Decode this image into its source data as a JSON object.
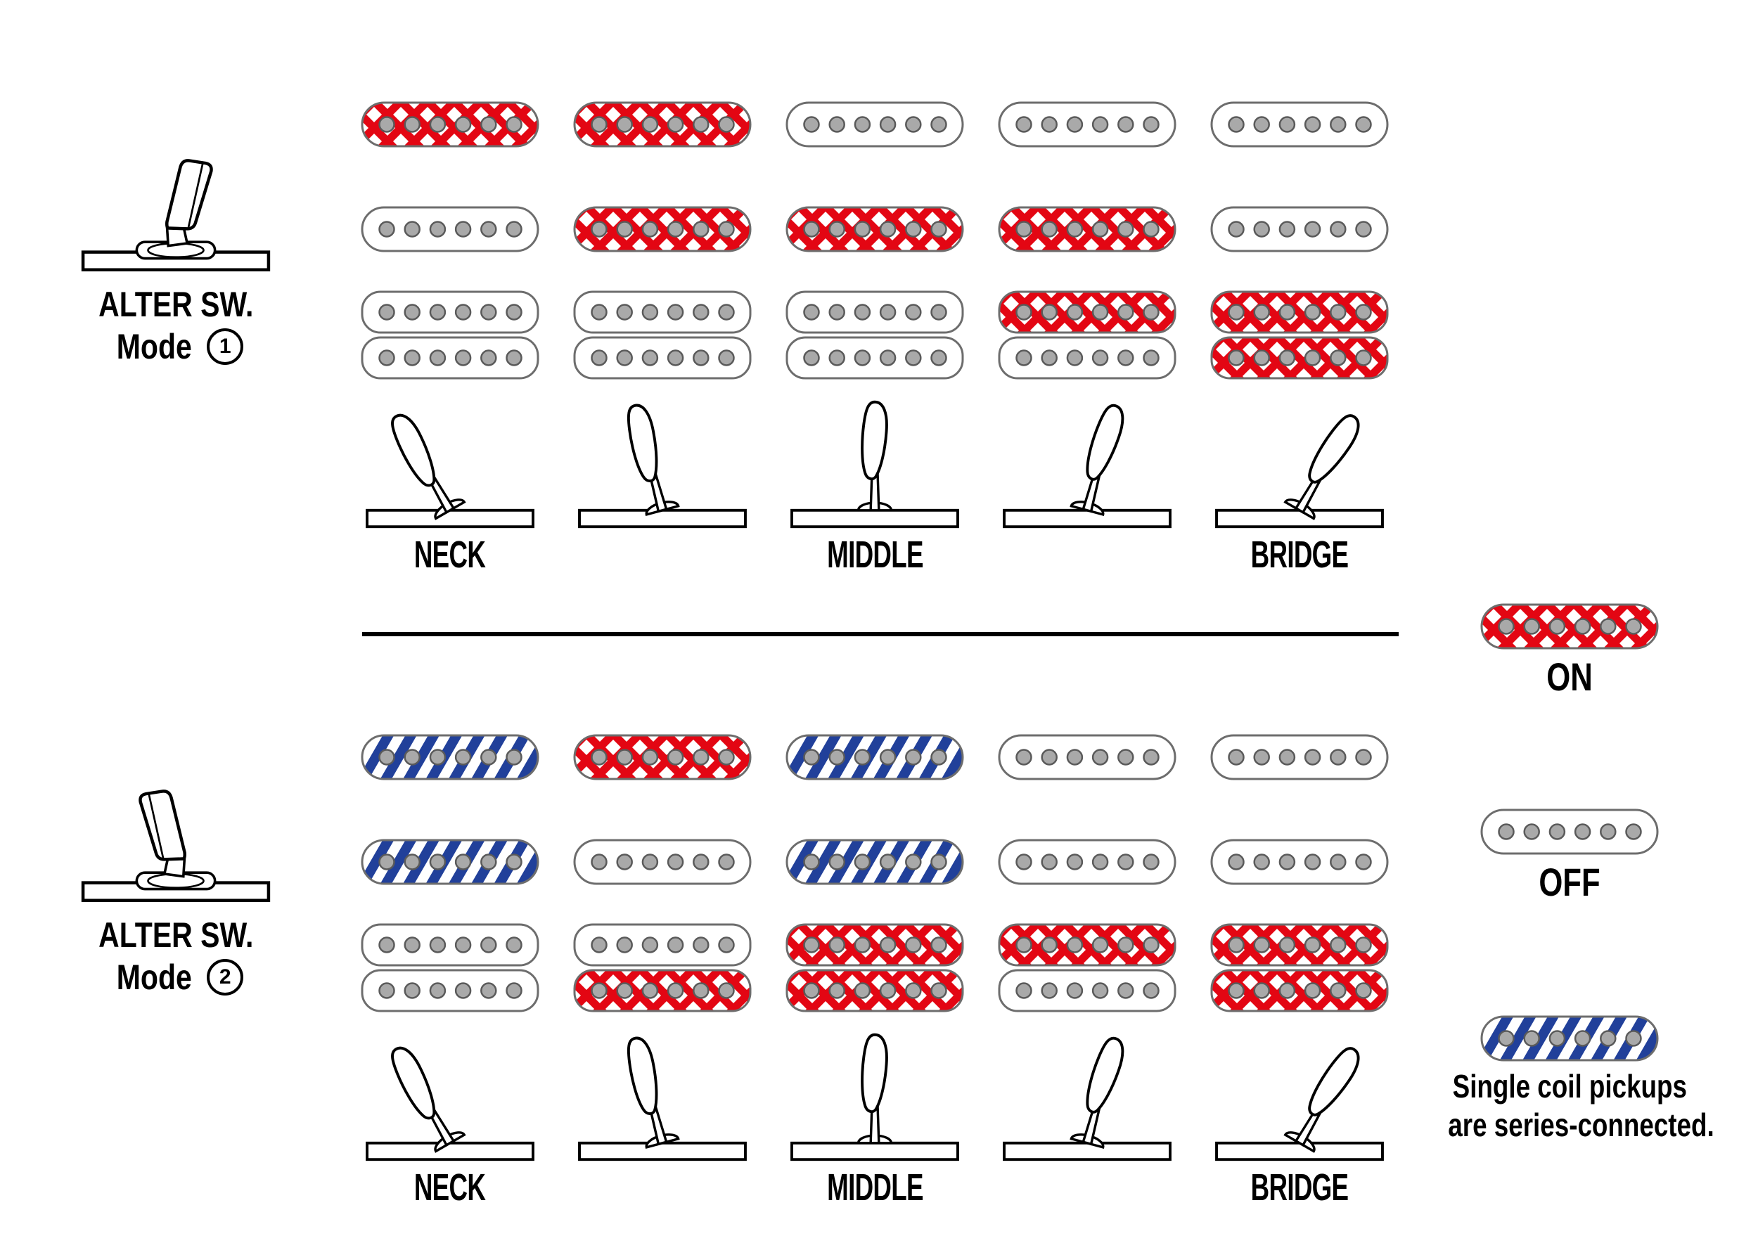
{
  "sections": [
    {
      "name": "mode1",
      "label": {
        "line1": "ALTER SW.",
        "line2_prefix": "Mode",
        "number": "1"
      },
      "switch_icon_lean": "right",
      "columns": [
        {
          "position": "NECK",
          "lever_angle": -30,
          "pickups": {
            "neck": "on",
            "middle": "off",
            "bridge": [
              "off",
              "off"
            ]
          }
        },
        {
          "position": "",
          "lever_angle": -15,
          "pickups": {
            "neck": "on",
            "middle": "on",
            "bridge": [
              "off",
              "off"
            ]
          }
        },
        {
          "position": "MIDDLE",
          "lever_angle": 0,
          "pickups": {
            "neck": "off",
            "middle": "on",
            "bridge": [
              "off",
              "off"
            ]
          }
        },
        {
          "position": "",
          "lever_angle": 15,
          "pickups": {
            "neck": "off",
            "middle": "on",
            "bridge": [
              "on",
              "off"
            ]
          }
        },
        {
          "position": "BRIDGE",
          "lever_angle": 30,
          "pickups": {
            "neck": "off",
            "middle": "off",
            "bridge": [
              "on",
              "on"
            ]
          }
        }
      ]
    },
    {
      "name": "mode2",
      "label": {
        "line1": "ALTER SW.",
        "line2_prefix": "Mode",
        "number": "2"
      },
      "switch_icon_lean": "left",
      "columns": [
        {
          "position": "NECK",
          "lever_angle": -30,
          "pickups": {
            "neck": "series",
            "middle": "series",
            "bridge": [
              "off",
              "off"
            ]
          }
        },
        {
          "position": "",
          "lever_angle": -15,
          "pickups": {
            "neck": "on",
            "middle": "off",
            "bridge": [
              "off",
              "on"
            ]
          }
        },
        {
          "position": "MIDDLE",
          "lever_angle": 0,
          "pickups": {
            "neck": "series",
            "middle": "series",
            "bridge": [
              "on",
              "on"
            ]
          }
        },
        {
          "position": "",
          "lever_angle": 15,
          "pickups": {
            "neck": "off",
            "middle": "off",
            "bridge": [
              "on",
              "off"
            ]
          }
        },
        {
          "position": "BRIDGE",
          "lever_angle": 30,
          "pickups": {
            "neck": "off",
            "middle": "off",
            "bridge": [
              "on",
              "on"
            ]
          }
        }
      ]
    }
  ],
  "legend": {
    "on": {
      "state": "on",
      "label": "ON"
    },
    "off": {
      "state": "off",
      "label": "OFF"
    },
    "series": {
      "state": "series",
      "note_lines": [
        "Single coil pickups",
        "are series-connected."
      ]
    }
  },
  "colors": {
    "pickup_on_red": "#e30613",
    "series_blue": "#21409a",
    "pole_gray": "#a9a9a9",
    "pole_ring_gray": "#5a5a5a",
    "pickup_outline_gray": "#6d6d6d",
    "ink_black": "#000000"
  }
}
